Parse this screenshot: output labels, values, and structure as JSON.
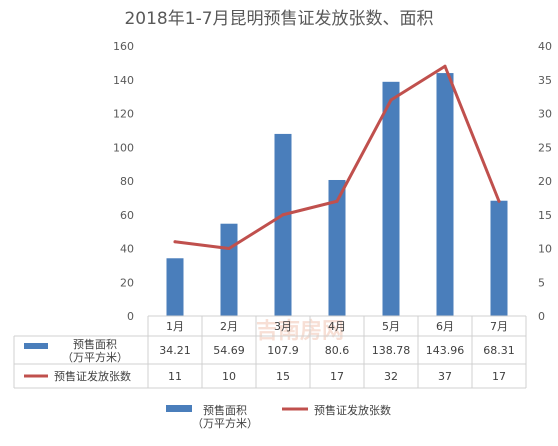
{
  "chart_data": {
    "type": "bar",
    "title": "2018年1-7月昆明预售证发放张数、面积",
    "categories": [
      "1月",
      "2月",
      "3月",
      "4月",
      "5月",
      "6月",
      "7月"
    ],
    "series": [
      {
        "name": "预售面积\n（万平方米）",
        "type": "bar",
        "axis": "left",
        "values": [
          34.21,
          54.69,
          107.9,
          80.6,
          138.78,
          143.96,
          68.31
        ],
        "value_labels": [
          "34.21",
          "54.69",
          "107.9",
          "80.6",
          "138.78",
          "143.96",
          "68.31"
        ],
        "color": "#4a7ebb"
      },
      {
        "name": "预售证发放张数",
        "type": "line",
        "axis": "right",
        "values": [
          11,
          10,
          15,
          17,
          32,
          37,
          17
        ],
        "value_labels": [
          "11",
          "10",
          "15",
          "17",
          "32",
          "37",
          "17"
        ],
        "color": "#c0504d"
      }
    ],
    "left_axis": {
      "min": 0,
      "max": 160,
      "step": 20
    },
    "right_axis": {
      "min": 0,
      "max": 40,
      "step": 5
    },
    "grid": false,
    "data_table": true,
    "legend_position": "bottom",
    "watermark": "吉南房网"
  }
}
